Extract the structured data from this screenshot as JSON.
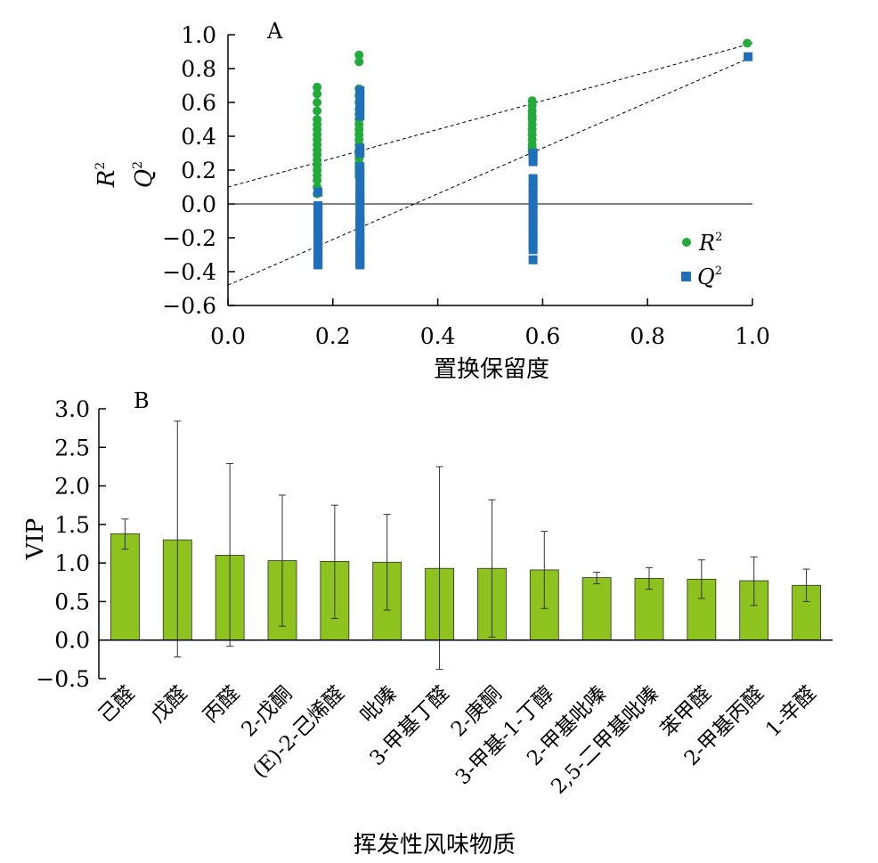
{
  "colors": {
    "r2": "#22aa3a",
    "q2": "#1f6fba",
    "bar": "#8dc21f",
    "axis": "#000000"
  },
  "chart_data": [
    {
      "panel": "A",
      "type": "scatter",
      "xlabel": "置换保留度",
      "ylabel": "R2 Q2",
      "xlim": [
        0.0,
        1.0
      ],
      "ylim": [
        -0.6,
        1.0
      ],
      "xticks": [
        "0.0",
        "0.2",
        "0.4",
        "0.6",
        "0.8",
        "1.0"
      ],
      "yticks": [
        "−0.6",
        "−0.4",
        "−0.2",
        "0.0",
        "0.2",
        "0.4",
        "0.6",
        "0.8",
        "1.0"
      ],
      "legend": [
        "R2",
        "Q2"
      ],
      "legend_position": "bottom-right",
      "regression_lines": [
        {
          "series": "R2",
          "x": [
            0.0,
            1.0
          ],
          "y": [
            0.1,
            0.95
          ]
        },
        {
          "series": "Q2",
          "x": [
            0.0,
            1.0
          ],
          "y": [
            -0.48,
            0.87
          ]
        }
      ],
      "series": [
        {
          "name": "R2",
          "x": [
            0.17,
            0.17,
            0.17,
            0.17,
            0.17,
            0.17,
            0.17,
            0.17,
            0.17,
            0.17,
            0.17,
            0.17,
            0.17,
            0.17,
            0.17,
            0.17,
            0.17,
            0.17,
            0.17,
            0.25,
            0.25,
            0.25,
            0.25,
            0.25,
            0.25,
            0.25,
            0.25,
            0.25,
            0.25,
            0.25,
            0.25,
            0.25,
            0.25,
            0.25,
            0.25,
            0.25,
            0.25,
            0.25,
            0.25,
            0.25,
            0.58,
            0.58,
            0.58,
            0.58,
            0.58,
            0.58,
            0.58,
            0.58,
            0.58,
            0.58,
            0.58,
            0.58,
            0.99
          ],
          "y": [
            0.69,
            0.65,
            0.6,
            0.55,
            0.5,
            0.47,
            0.44,
            0.41,
            0.38,
            0.35,
            0.32,
            0.29,
            0.26,
            0.23,
            0.2,
            0.17,
            0.14,
            0.1,
            0.06,
            0.88,
            0.84,
            0.68,
            0.64,
            0.6,
            0.56,
            0.53,
            0.5,
            0.47,
            0.44,
            0.41,
            0.38,
            0.35,
            0.32,
            0.29,
            0.27,
            0.24,
            0.22,
            0.2,
            0.18,
            0.16,
            0.61,
            0.58,
            0.55,
            0.52,
            0.5,
            0.47,
            0.44,
            0.41,
            0.38,
            0.35,
            0.33,
            0.31,
            0.95
          ]
        },
        {
          "name": "Q2",
          "x": [
            0.17,
            0.17,
            0.17,
            0.17,
            0.17,
            0.17,
            0.17,
            0.17,
            0.17,
            0.17,
            0.17,
            0.17,
            0.17,
            0.17,
            0.17,
            0.17,
            0.17,
            0.17,
            0.17,
            0.17,
            0.25,
            0.25,
            0.25,
            0.25,
            0.25,
            0.25,
            0.25,
            0.25,
            0.25,
            0.25,
            0.25,
            0.25,
            0.25,
            0.25,
            0.25,
            0.25,
            0.25,
            0.25,
            0.25,
            0.25,
            0.25,
            0.25,
            0.25,
            0.25,
            0.25,
            0.25,
            0.25,
            0.25,
            0.25,
            0.25,
            0.25,
            0.25,
            0.25,
            0.25,
            0.25,
            0.25,
            0.58,
            0.58,
            0.58,
            0.58,
            0.58,
            0.58,
            0.58,
            0.58,
            0.58,
            0.58,
            0.58,
            0.58,
            0.58,
            0.58,
            0.58,
            0.58,
            0.58,
            0.58,
            0.58,
            0.58,
            0.99
          ],
          "y": [
            0.07,
            -0.01,
            -0.03,
            -0.05,
            -0.07,
            -0.09,
            -0.11,
            -0.13,
            -0.15,
            -0.17,
            -0.19,
            -0.21,
            -0.23,
            -0.25,
            -0.27,
            -0.29,
            -0.31,
            -0.33,
            -0.35,
            -0.36,
            0.67,
            0.64,
            0.61,
            0.58,
            0.55,
            0.52,
            0.33,
            0.3,
            0.22,
            0.19,
            0.16,
            0.13,
            0.1,
            0.07,
            0.04,
            0.01,
            -0.02,
            -0.05,
            -0.08,
            -0.11,
            -0.14,
            -0.17,
            -0.2,
            -0.23,
            -0.26,
            -0.28,
            -0.3,
            -0.32,
            -0.34,
            -0.35,
            -0.36,
            0.02,
            -0.1,
            -0.12,
            -0.22,
            -0.25,
            0.3,
            0.28,
            0.25,
            0.15,
            0.12,
            0.09,
            0.06,
            0.03,
            0.0,
            -0.02,
            -0.04,
            -0.07,
            -0.1,
            -0.13,
            -0.16,
            -0.19,
            -0.22,
            -0.24,
            -0.27,
            -0.33,
            0.87
          ]
        }
      ]
    },
    {
      "panel": "B",
      "type": "bar",
      "xlabel": "挥发性风味物质",
      "ylabel": "VIP",
      "ylim": [
        -0.5,
        3.0
      ],
      "yticks": [
        "−0.5",
        "0.0",
        "0.5",
        "1.0",
        "1.5",
        "2.0",
        "2.5",
        "3.0"
      ],
      "categories": [
        "己醛",
        "戊醛",
        "丙醛",
        "2-戊酮",
        "(E)-2-己烯醛",
        "吡嗪",
        "3-甲基丁醛",
        "2-庚酮",
        "3-甲基-1-丁醇",
        "2-甲基吡嗪",
        "2,5-二甲基吡嗪",
        "苯甲醛",
        "2-甲基丙醛",
        "1-辛醛"
      ],
      "values": [
        1.38,
        1.3,
        1.1,
        1.03,
        1.02,
        1.01,
        0.93,
        0.93,
        0.91,
        0.81,
        0.8,
        0.79,
        0.77,
        0.71
      ],
      "error_upper": [
        1.57,
        2.84,
        2.29,
        1.88,
        1.75,
        1.63,
        2.25,
        1.82,
        1.41,
        0.88,
        0.94,
        1.04,
        1.08,
        0.92
      ],
      "error_lower": [
        1.18,
        -0.22,
        -0.08,
        0.18,
        0.28,
        0.39,
        -0.38,
        0.04,
        0.41,
        0.73,
        0.66,
        0.54,
        0.45,
        0.5
      ]
    }
  ],
  "panels": {
    "a": {
      "label": "A",
      "xlabel": "置换保留度",
      "ylabel_r": "R",
      "ylabel_q": "Q",
      "ylabel_sup": "2",
      "legend_r": "R",
      "legend_q": "Q",
      "legend_sup": "2",
      "xticks": [
        "0.0",
        "0.2",
        "0.4",
        "0.6",
        "0.8",
        "1.0"
      ],
      "yticks": [
        "−0.6",
        "−0.4",
        "−0.2",
        "0.0",
        "0.2",
        "0.4",
        "0.6",
        "0.8",
        "1.0"
      ]
    },
    "b": {
      "label": "B",
      "xlabel": "挥发性风味物质",
      "ylabel": "VIP",
      "yticks": [
        "−0.5",
        "0.0",
        "0.5",
        "1.0",
        "1.5",
        "2.0",
        "2.5",
        "3.0"
      ],
      "categories": [
        "己醛",
        "戊醛",
        "丙醛",
        "2-戊酮",
        "(E)-2-己烯醛",
        "吡嗪",
        "3-甲基丁醛",
        "2-庚酮",
        "3-甲基-1-丁醇",
        "2-甲基吡嗪",
        "2,5-二甲基吡嗪",
        "苯甲醛",
        "2-甲基丙醛",
        "1-辛醛"
      ]
    }
  }
}
